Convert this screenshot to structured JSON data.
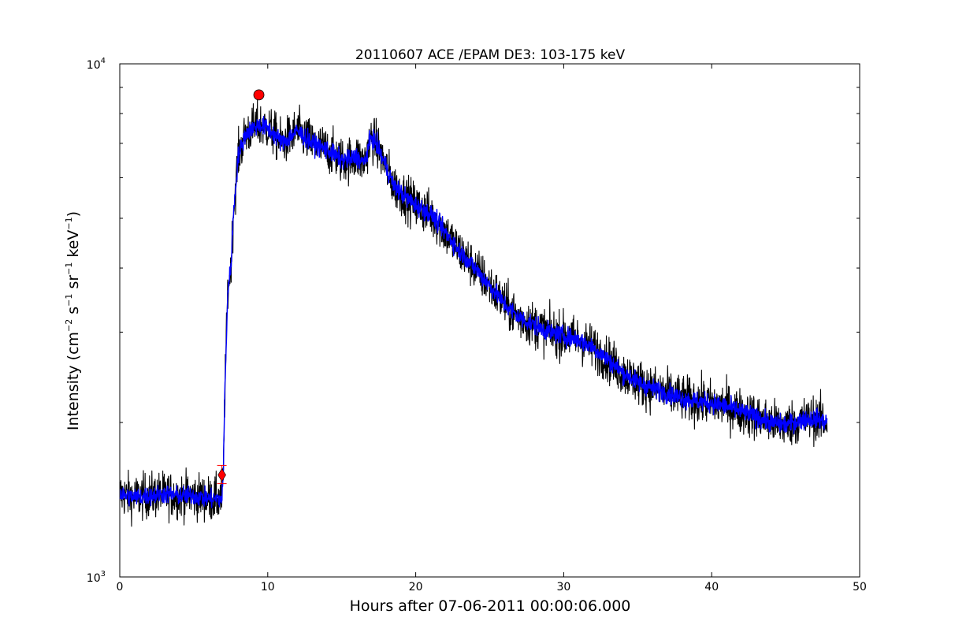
{
  "chart_data": {
    "type": "line",
    "title": "20110607 ACE /EPAM DE3: 103-175 keV",
    "xlabel": "Hours after 07-06-2011 00:00:06.000",
    "ylabel": {
      "base": "Intensity (cm",
      "exp1": "−2",
      "mid1": " s",
      "exp2": "−1",
      "mid2": " sr",
      "exp3": "−1",
      "mid3": " keV",
      "exp4": "−1",
      "end": ")"
    },
    "xlim": [
      0,
      50
    ],
    "ylim": [
      1000,
      10000
    ],
    "yscale": "log",
    "grid": false,
    "x_ticks": [
      "0",
      "10",
      "20",
      "30",
      "40",
      "50"
    ],
    "x_tick_values": [
      0,
      10,
      20,
      30,
      40,
      50
    ],
    "y_ticks": [
      {
        "value": 1000,
        "base": "10",
        "exp": "3"
      },
      {
        "value": 10000,
        "base": "10",
        "exp": "4"
      }
    ],
    "series": [
      {
        "color": "#000000",
        "style": "raw",
        "x": [
          0,
          1,
          2,
          3,
          4,
          5,
          6,
          6.9,
          7.0,
          7.1,
          7.3,
          7.5,
          7.7,
          8.0,
          8.5,
          9.0,
          9.4,
          10,
          11,
          12,
          13,
          14,
          15,
          15.5,
          16,
          16.5,
          17,
          17.3,
          18,
          18.5,
          19,
          20,
          21,
          22,
          23,
          24,
          25,
          26,
          27,
          28,
          29,
          30,
          31,
          32,
          33,
          34,
          35,
          36,
          37,
          38,
          39,
          40,
          41,
          42,
          43,
          44,
          45,
          46,
          47,
          47.8
        ],
        "y": [
          1450,
          1430,
          1440,
          1450,
          1440,
          1440,
          1420,
          1420,
          1600,
          2300,
          3600,
          4000,
          5200,
          6600,
          7300,
          7500,
          7600,
          7500,
          7000,
          7400,
          7000,
          6800,
          6500,
          6500,
          6600,
          6400,
          7200,
          7000,
          6300,
          5800,
          5600,
          5300,
          5100,
          4700,
          4300,
          4000,
          3700,
          3400,
          3200,
          3100,
          3000,
          2950,
          2900,
          2800,
          2650,
          2500,
          2400,
          2330,
          2280,
          2230,
          2200,
          2180,
          2150,
          2100,
          2050,
          2000,
          1980,
          2020,
          2040,
          2000
        ]
      },
      {
        "color": "#0000ff",
        "style": "smoothed",
        "x": [
          0,
          1,
          2,
          3,
          4,
          5,
          6,
          6.9,
          7.0,
          7.1,
          7.3,
          7.5,
          7.7,
          8.0,
          8.5,
          9.0,
          9.4,
          10,
          11,
          12,
          13,
          14,
          15,
          15.5,
          16,
          16.5,
          17,
          17.3,
          18,
          18.5,
          19,
          20,
          21,
          22,
          23,
          24,
          25,
          26,
          27,
          28,
          29,
          30,
          31,
          32,
          33,
          34,
          35,
          36,
          37,
          38,
          39,
          40,
          41,
          42,
          43,
          44,
          45,
          46,
          47,
          47.8
        ],
        "y": [
          1450,
          1430,
          1440,
          1450,
          1440,
          1440,
          1420,
          1420,
          1600,
          2300,
          3600,
          4000,
          5200,
          6600,
          7300,
          7500,
          7600,
          7500,
          7000,
          7400,
          7000,
          6800,
          6500,
          6500,
          6600,
          6400,
          7200,
          7000,
          6300,
          5800,
          5600,
          5300,
          5100,
          4700,
          4300,
          4000,
          3700,
          3400,
          3200,
          3100,
          3000,
          2950,
          2900,
          2800,
          2650,
          2500,
          2400,
          2330,
          2280,
          2230,
          2200,
          2180,
          2150,
          2100,
          2050,
          2000,
          1980,
          2020,
          2040,
          2000
        ]
      }
    ],
    "markers": [
      {
        "type": "circle",
        "color": "#ff0000",
        "x": 9.4,
        "y": 8700
      },
      {
        "type": "diamond",
        "color": "#ff0000",
        "x": 6.9,
        "y": 1580,
        "error_low": 1520,
        "error_high": 1650
      }
    ]
  }
}
